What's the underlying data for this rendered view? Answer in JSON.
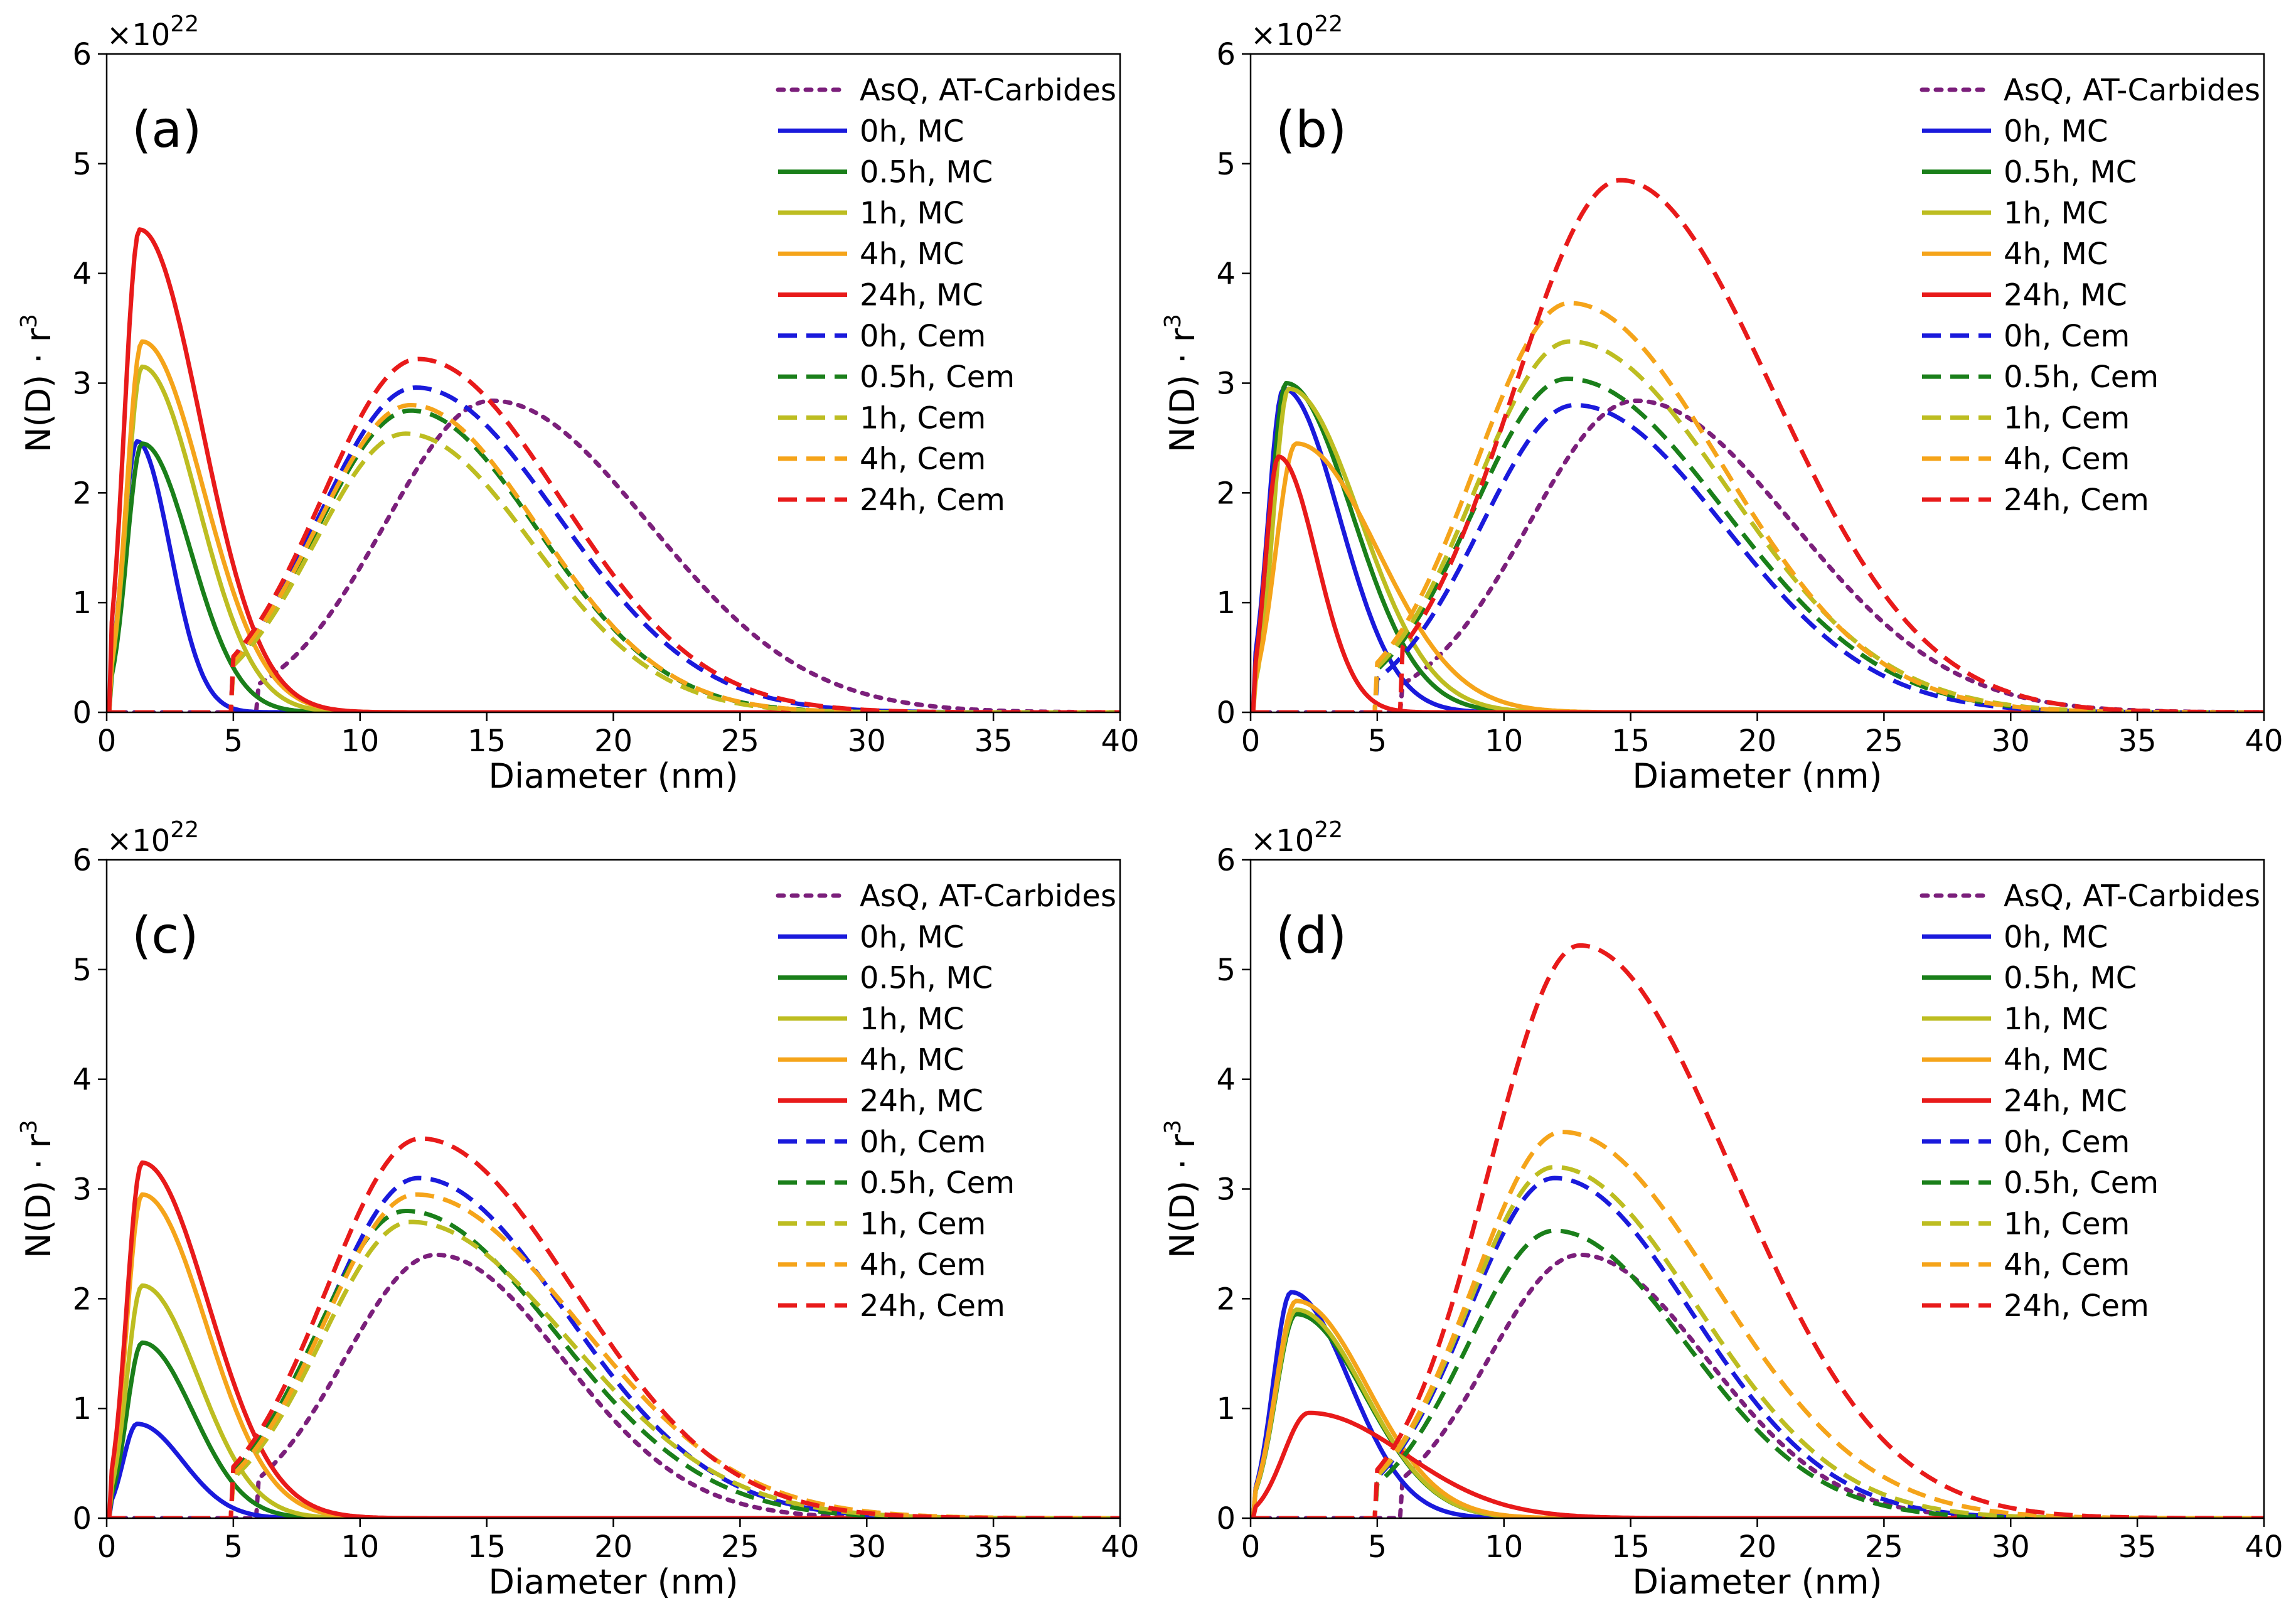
{
  "figure": {
    "scale_label": "×10",
    "scale_exponent": "22",
    "xlabel": "Diameter (nm)",
    "ylabel_main": "N(D) · r",
    "ylabel_sup": "3",
    "x_ticks": [
      "0",
      "5",
      "10",
      "15",
      "20",
      "25",
      "30",
      "35",
      "40"
    ],
    "y_ticks": [
      "0",
      "1",
      "2",
      "3",
      "4",
      "5",
      "6"
    ],
    "legend": [
      {
        "label": "AsQ, AT-Carbides",
        "color": "#7B1F7B",
        "style": "dotted"
      },
      {
        "label": "0h, MC",
        "color": "#1A1ADC",
        "style": "solid"
      },
      {
        "label": "0.5h, MC",
        "color": "#1A7F1A",
        "style": "solid"
      },
      {
        "label": "1h, MC",
        "color": "#BDBD21",
        "style": "solid"
      },
      {
        "label": "4h, MC",
        "color": "#F5A41A",
        "style": "solid"
      },
      {
        "label": "24h, MC",
        "color": "#E81A1A",
        "style": "solid"
      },
      {
        "label": "0h, Cem",
        "color": "#1A1ADC",
        "style": "dashed"
      },
      {
        "label": "0.5h, Cem",
        "color": "#1A7F1A",
        "style": "dashed"
      },
      {
        "label": "1h, Cem",
        "color": "#BDBD21",
        "style": "dashed"
      },
      {
        "label": "4h, Cem",
        "color": "#F5A41A",
        "style": "dashed"
      },
      {
        "label": "24h, Cem",
        "color": "#E81A1A",
        "style": "dashed"
      }
    ]
  },
  "chart_data": [
    {
      "type": "line",
      "panel_label": "(a)",
      "xlabel": "Diameter (nm)",
      "ylabel": "N(D) · r^3 (×10^22)",
      "xlim": [
        0,
        40
      ],
      "ylim": [
        0,
        6
      ],
      "series": [
        {
          "name": "AsQ, AT-Carbides",
          "peak_x": 15.2,
          "peak_y": 2.84,
          "width_left": 4.2,
          "width_right": 6.2,
          "start": 6.0
        },
        {
          "name": "0h, MC",
          "peak_x": 1.2,
          "peak_y": 2.47,
          "width_left": 0.55,
          "width_right": 1.3,
          "start": 0.2
        },
        {
          "name": "0.5h, MC",
          "peak_x": 1.4,
          "peak_y": 2.45,
          "width_left": 0.6,
          "width_right": 1.9,
          "start": 0.2
        },
        {
          "name": "1h, MC",
          "peak_x": 1.4,
          "peak_y": 3.15,
          "width_left": 0.6,
          "width_right": 2.2,
          "start": 0.2
        },
        {
          "name": "4h, MC",
          "peak_x": 1.4,
          "peak_y": 3.38,
          "width_left": 0.6,
          "width_right": 2.4,
          "start": 0.2
        },
        {
          "name": "24h, MC",
          "peak_x": 1.3,
          "peak_y": 4.4,
          "width_left": 0.6,
          "width_right": 2.4,
          "start": 0.2
        },
        {
          "name": "0h, Cem",
          "peak_x": 12.2,
          "peak_y": 2.96,
          "width_left": 3.8,
          "width_right": 5.6,
          "start": 5.0
        },
        {
          "name": "0.5h, Cem",
          "peak_x": 12.0,
          "peak_y": 2.75,
          "width_left": 3.7,
          "width_right": 5.0,
          "start": 5.0
        },
        {
          "name": "1h, Cem",
          "peak_x": 11.8,
          "peak_y": 2.54,
          "width_left": 3.6,
          "width_right": 5.0,
          "start": 5.0
        },
        {
          "name": "4h, Cem",
          "peak_x": 12.0,
          "peak_y": 2.8,
          "width_left": 3.7,
          "width_right": 5.0,
          "start": 5.0
        },
        {
          "name": "24h, Cem",
          "peak_x": 12.3,
          "peak_y": 3.22,
          "width_left": 3.8,
          "width_right": 5.6,
          "start": 5.0
        }
      ]
    },
    {
      "type": "line",
      "panel_label": "(b)",
      "xlabel": "Diameter (nm)",
      "ylabel": "N(D) · r^3 (×10^22)",
      "xlim": [
        0,
        40
      ],
      "ylim": [
        0,
        6
      ],
      "series": [
        {
          "name": "AsQ, AT-Carbides",
          "peak_x": 15.2,
          "peak_y": 2.84,
          "width_left": 4.2,
          "width_right": 6.2,
          "start": 6.0
        },
        {
          "name": "0h, MC",
          "peak_x": 1.3,
          "peak_y": 2.95,
          "width_left": 0.6,
          "width_right": 2.2,
          "start": 0.2
        },
        {
          "name": "0.5h, MC",
          "peak_x": 1.4,
          "peak_y": 3.0,
          "width_left": 0.6,
          "width_right": 2.6,
          "start": 0.2
        },
        {
          "name": "1h, MC",
          "peak_x": 1.5,
          "peak_y": 2.95,
          "width_left": 0.6,
          "width_right": 2.8,
          "start": 0.2
        },
        {
          "name": "4h, MC",
          "peak_x": 1.8,
          "peak_y": 2.45,
          "width_left": 0.8,
          "width_right": 3.2,
          "start": 0.2
        },
        {
          "name": "24h, MC",
          "peak_x": 1.1,
          "peak_y": 2.33,
          "width_left": 0.5,
          "width_right": 1.5,
          "start": 0.2
        },
        {
          "name": "0h, Cem",
          "peak_x": 12.8,
          "peak_y": 2.8,
          "width_left": 3.7,
          "width_right": 5.9,
          "start": 5.0
        },
        {
          "name": "0.5h, Cem",
          "peak_x": 12.5,
          "peak_y": 3.04,
          "width_left": 3.7,
          "width_right": 6.2,
          "start": 5.0
        },
        {
          "name": "1h, Cem",
          "peak_x": 12.6,
          "peak_y": 3.38,
          "width_left": 3.7,
          "width_right": 6.2,
          "start": 5.0
        },
        {
          "name": "4h, Cem",
          "peak_x": 12.6,
          "peak_y": 3.73,
          "width_left": 3.7,
          "width_right": 6.0,
          "start": 5.0
        },
        {
          "name": "24h, Cem",
          "peak_x": 14.6,
          "peak_y": 4.85,
          "width_left": 4.2,
          "width_right": 6.0,
          "start": 6.0
        }
      ]
    },
    {
      "type": "line",
      "panel_label": "(c)",
      "xlabel": "Diameter (nm)",
      "ylabel": "N(D) · r^3 (×10^22)",
      "xlim": [
        0,
        40
      ],
      "ylim": [
        0,
        6
      ],
      "series": [
        {
          "name": "AsQ, AT-Carbides",
          "peak_x": 13.0,
          "peak_y": 2.4,
          "width_left": 3.6,
          "width_right": 5.0,
          "start": 6.0
        },
        {
          "name": "0h, MC",
          "peak_x": 1.2,
          "peak_y": 0.86,
          "width_left": 0.55,
          "width_right": 1.8,
          "start": 0.2
        },
        {
          "name": "0.5h, MC",
          "peak_x": 1.4,
          "peak_y": 1.6,
          "width_left": 0.6,
          "width_right": 2.0,
          "start": 0.2
        },
        {
          "name": "1h, MC",
          "peak_x": 1.4,
          "peak_y": 2.12,
          "width_left": 0.6,
          "width_right": 2.2,
          "start": 0.2
        },
        {
          "name": "4h, MC",
          "peak_x": 1.4,
          "peak_y": 2.95,
          "width_left": 0.6,
          "width_right": 2.5,
          "start": 0.2
        },
        {
          "name": "24h, MC",
          "peak_x": 1.4,
          "peak_y": 3.24,
          "width_left": 0.6,
          "width_right": 2.6,
          "start": 0.2
        },
        {
          "name": "0h, Cem",
          "peak_x": 12.3,
          "peak_y": 3.1,
          "width_left": 3.6,
          "width_right": 5.8,
          "start": 5.0
        },
        {
          "name": "0.5h, Cem",
          "peak_x": 11.8,
          "peak_y": 2.8,
          "width_left": 3.5,
          "width_right": 5.9,
          "start": 5.0
        },
        {
          "name": "1h, Cem",
          "peak_x": 12.0,
          "peak_y": 2.7,
          "width_left": 3.5,
          "width_right": 6.2,
          "start": 5.0
        },
        {
          "name": "4h, Cem",
          "peak_x": 12.2,
          "peak_y": 2.95,
          "width_left": 3.6,
          "width_right": 6.4,
          "start": 5.0
        },
        {
          "name": "24h, Cem",
          "peak_x": 12.4,
          "peak_y": 3.46,
          "width_left": 3.7,
          "width_right": 6.0,
          "start": 5.0
        }
      ]
    },
    {
      "type": "line",
      "panel_label": "(d)",
      "xlabel": "Diameter (nm)",
      "ylabel": "N(D) · r^3 (×10^22)",
      "xlim": [
        0,
        40
      ],
      "ylim": [
        0,
        6
      ],
      "series": [
        {
          "name": "AsQ, AT-Carbides",
          "peak_x": 13.0,
          "peak_y": 2.4,
          "width_left": 3.6,
          "width_right": 5.0,
          "start": 6.0
        },
        {
          "name": "0h, MC",
          "peak_x": 1.6,
          "peak_y": 2.06,
          "width_left": 0.7,
          "width_right": 2.3,
          "start": 0.2
        },
        {
          "name": "0.5h, MC",
          "peak_x": 1.8,
          "peak_y": 1.86,
          "width_left": 0.8,
          "width_right": 2.7,
          "start": 0.2
        },
        {
          "name": "1h, MC",
          "peak_x": 1.8,
          "peak_y": 1.9,
          "width_left": 0.8,
          "width_right": 2.7,
          "start": 0.2
        },
        {
          "name": "4h, MC",
          "peak_x": 1.8,
          "peak_y": 1.98,
          "width_left": 0.8,
          "width_right": 2.8,
          "start": 0.2
        },
        {
          "name": "24h, MC",
          "peak_x": 2.3,
          "peak_y": 0.96,
          "width_left": 1.0,
          "width_right": 3.8,
          "start": 0.2
        },
        {
          "name": "0h, Cem",
          "peak_x": 12.0,
          "peak_y": 3.1,
          "width_left": 3.4,
          "width_right": 5.4,
          "start": 5.0
        },
        {
          "name": "0.5h, Cem",
          "peak_x": 12.0,
          "peak_y": 2.62,
          "width_left": 3.4,
          "width_right": 5.2,
          "start": 5.0
        },
        {
          "name": "1h, Cem",
          "peak_x": 12.0,
          "peak_y": 3.2,
          "width_left": 3.4,
          "width_right": 5.6,
          "start": 5.0
        },
        {
          "name": "4h, Cem",
          "peak_x": 12.3,
          "peak_y": 3.52,
          "width_left": 3.5,
          "width_right": 6.0,
          "start": 5.0
        },
        {
          "name": "24h, Cem",
          "peak_x": 13.0,
          "peak_y": 5.22,
          "width_left": 3.6,
          "width_right": 6.0,
          "start": 5.0
        }
      ]
    }
  ]
}
